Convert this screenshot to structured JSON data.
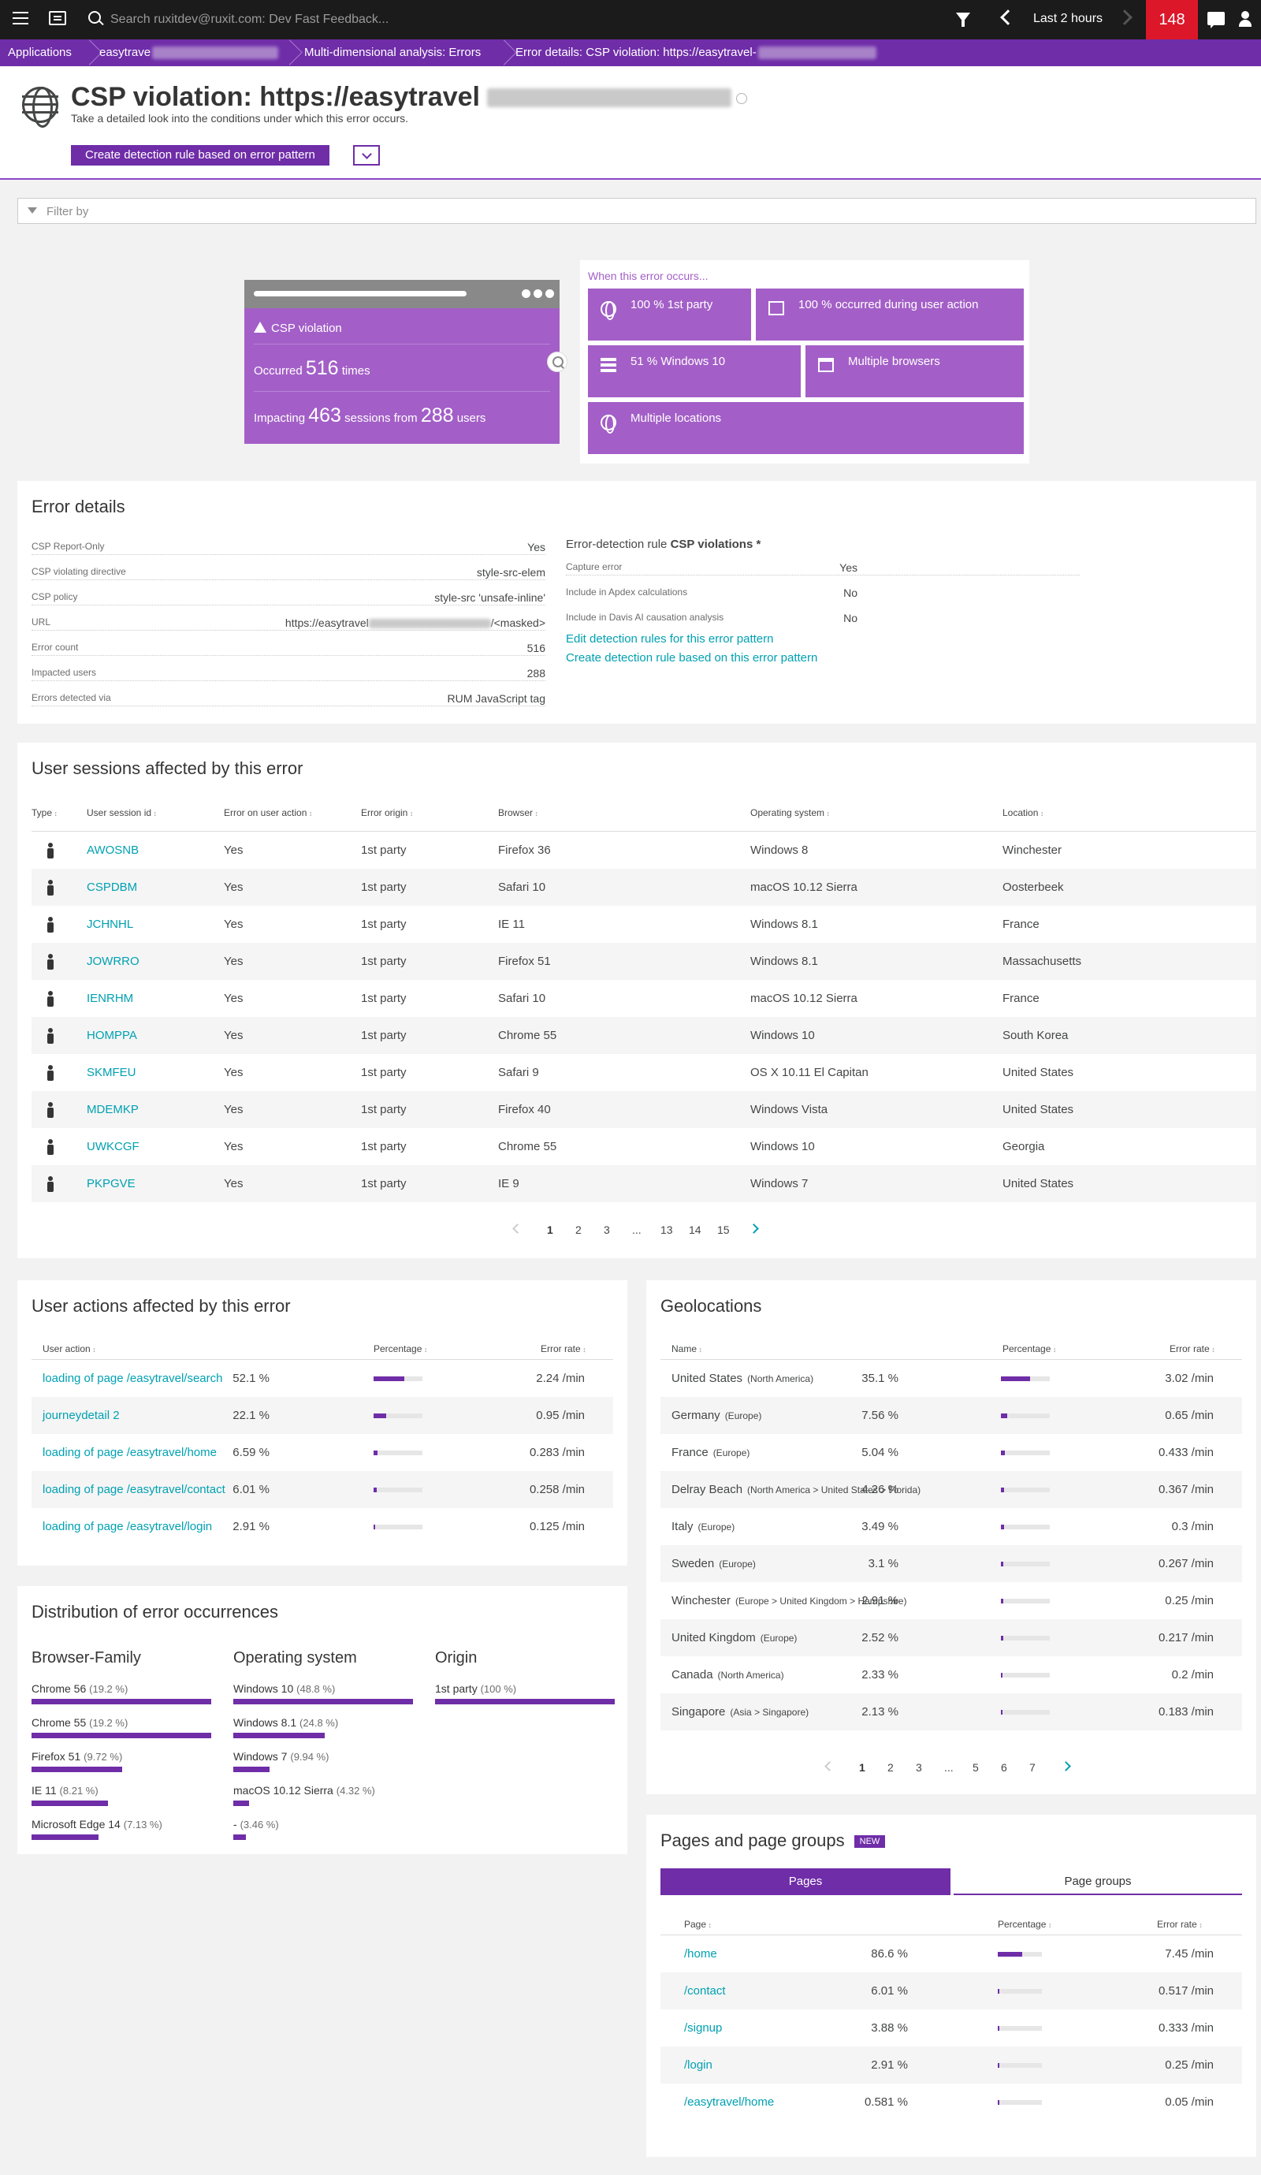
{
  "topbar": {
    "search_placeholder": "Search ruxitdev@ruxit.com: Dev Fast Feedback...",
    "timeframe": "Last 2 hours",
    "alert_count": "148"
  },
  "breadcrumb": {
    "items": [
      "Applications",
      "easytrave",
      "Multi-dimensional analysis: Errors",
      "Error details: CSP violation: https://easytravel-"
    ]
  },
  "header": {
    "title": "CSP violation: https://easytravel",
    "subtitle": "Take a detailed look into the conditions under which this error occurs.",
    "create_rule_button": "Create detection rule based on error pattern"
  },
  "filter": {
    "placeholder": "Filter by"
  },
  "summary": {
    "error_name": "CSP violation",
    "occurred_prefix": "Occurred",
    "occurred_count": "516",
    "occurred_suffix": "times",
    "impacting_prefix": "Impacting",
    "sessions_count": "463",
    "sessions_mid": "sessions from",
    "users_count": "288",
    "users_suffix": "users",
    "when_label": "When this error occurs...",
    "tiles": [
      {
        "icon": "globe-icon",
        "text": "100 % 1st party"
      },
      {
        "icon": "user-action-icon",
        "text": "100 % occurred during user action"
      },
      {
        "icon": "windows-icon",
        "text": "51 % Windows 10"
      },
      {
        "icon": "browsers-icon",
        "text": "Multiple browsers"
      },
      {
        "icon": "location-icon",
        "text": "Multiple locations"
      }
    ]
  },
  "error_details": {
    "title": "Error details",
    "left": [
      {
        "key": "CSP Report-Only",
        "value": "Yes"
      },
      {
        "key": "CSP violating directive",
        "value": "style-src-elem"
      },
      {
        "key": "CSP policy",
        "value": "style-src 'unsafe-inline'"
      },
      {
        "key": "URL",
        "value_prefix": "https://easytravel",
        "value_suffix": "/<masked>"
      },
      {
        "key": "Error count",
        "value": "516"
      },
      {
        "key": "Impacted users",
        "value": "288"
      },
      {
        "key": "Errors detected via",
        "value": "RUM JavaScript tag"
      }
    ],
    "rule_label": "Error-detection rule",
    "rule_name": "CSP violations *",
    "right": [
      {
        "key": "Capture error",
        "value": "Yes"
      },
      {
        "key": "Include in Apdex calculations",
        "value": "No"
      },
      {
        "key": "Include in Davis AI causation analysis",
        "value": "No"
      }
    ],
    "link_edit": "Edit detection rules for this error pattern",
    "link_create": "Create detection rule based on this error pattern"
  },
  "sessions": {
    "title": "User sessions affected by this error",
    "columns": [
      "Type",
      "User session id",
      "Error on user action",
      "Error origin",
      "Browser",
      "Operating system",
      "Location"
    ],
    "rows": [
      [
        "AWOSNB",
        "Yes",
        "1st party",
        "Firefox 36",
        "Windows 8",
        "Winchester"
      ],
      [
        "CSPDBM",
        "Yes",
        "1st party",
        "Safari 10",
        "macOS 10.12 Sierra",
        "Oosterbeek"
      ],
      [
        "JCHNHL",
        "Yes",
        "1st party",
        "IE 11",
        "Windows 8.1",
        "France"
      ],
      [
        "JOWRRO",
        "Yes",
        "1st party",
        "Firefox 51",
        "Windows 8.1",
        "Massachusetts"
      ],
      [
        "IENRHM",
        "Yes",
        "1st party",
        "Safari 10",
        "macOS 10.12 Sierra",
        "France"
      ],
      [
        "HOMPPA",
        "Yes",
        "1st party",
        "Chrome 55",
        "Windows 10",
        "South Korea"
      ],
      [
        "SKMFEU",
        "Yes",
        "1st party",
        "Safari 9",
        "OS X 10.11 El Capitan",
        "United States"
      ],
      [
        "MDEMKP",
        "Yes",
        "1st party",
        "Firefox 40",
        "Windows Vista",
        "United States"
      ],
      [
        "UWKCGF",
        "Yes",
        "1st party",
        "Chrome 55",
        "Windows 10",
        "Georgia"
      ],
      [
        "PKPGVE",
        "Yes",
        "1st party",
        "IE 9",
        "Windows 7",
        "United States"
      ]
    ],
    "pages": [
      "1",
      "2",
      "3",
      "...",
      "13",
      "14",
      "15"
    ]
  },
  "actions": {
    "title": "User actions affected by this error",
    "columns": [
      "User action",
      "Percentage",
      "Error rate"
    ],
    "rows": [
      {
        "name": "loading of page /easytravel/search",
        "pct": "52.1 %",
        "frac": 0.521,
        "rate": "2.24 /min"
      },
      {
        "name": "journeydetail 2",
        "pct": "22.1 %",
        "frac": 0.221,
        "rate": "0.95 /min"
      },
      {
        "name": "loading of page /easytravel/home",
        "pct": "6.59 %",
        "frac": 0.0659,
        "rate": "0.283 /min"
      },
      {
        "name": "loading of page /easytravel/contact",
        "pct": "6.01 %",
        "frac": 0.0601,
        "rate": "0.258 /min"
      },
      {
        "name": "loading of page /easytravel/login",
        "pct": "2.91 %",
        "frac": 0.0291,
        "rate": "0.125 /min"
      }
    ]
  },
  "distribution": {
    "title": "Distribution of error occurrences",
    "columns": [
      {
        "heading": "Browser-Family",
        "items": [
          {
            "label": "Chrome 56",
            "pct": "(19.2 %)",
            "frac": 0.192
          },
          {
            "label": "Chrome 55",
            "pct": "(19.2 %)",
            "frac": 0.192
          },
          {
            "label": "Firefox 51",
            "pct": "(9.72 %)",
            "frac": 0.0972
          },
          {
            "label": "IE 11",
            "pct": "(8.21 %)",
            "frac": 0.0821
          },
          {
            "label": "Microsoft Edge 14",
            "pct": "(7.13 %)",
            "frac": 0.0713
          }
        ]
      },
      {
        "heading": "Operating system",
        "items": [
          {
            "label": "Windows 10",
            "pct": "(48.8 %)",
            "frac": 0.488
          },
          {
            "label": "Windows 8.1",
            "pct": "(24.8 %)",
            "frac": 0.248
          },
          {
            "label": "Windows 7",
            "pct": "(9.94 %)",
            "frac": 0.0994
          },
          {
            "label": "macOS 10.12 Sierra",
            "pct": "(4.32 %)",
            "frac": 0.0432
          },
          {
            "label": "-",
            "pct": "(3.46 %)",
            "frac": 0.0346
          }
        ]
      },
      {
        "heading": "Origin",
        "items": [
          {
            "label": "1st party",
            "pct": "(100 %)",
            "frac": 1.0
          }
        ]
      }
    ]
  },
  "geo": {
    "title": "Geolocations",
    "columns": [
      "Name",
      "Percentage",
      "Error rate"
    ],
    "rows": [
      {
        "name": "United States",
        "region": "(North America)",
        "pct": "35.1 %",
        "frac": 0.351,
        "rate": "3.02 /min"
      },
      {
        "name": "Germany",
        "region": "(Europe)",
        "pct": "7.56 %",
        "frac": 0.0756,
        "rate": "0.65 /min"
      },
      {
        "name": "France",
        "region": "(Europe)",
        "pct": "5.04 %",
        "frac": 0.0504,
        "rate": "0.433 /min"
      },
      {
        "name": "Delray Beach",
        "region": "(North America > United States > Florida)",
        "pct": "4.26 %",
        "frac": 0.0426,
        "rate": "0.367 /min"
      },
      {
        "name": "Italy",
        "region": "(Europe)",
        "pct": "3.49 %",
        "frac": 0.0349,
        "rate": "0.3 /min"
      },
      {
        "name": "Sweden",
        "region": "(Europe)",
        "pct": "3.1 %",
        "frac": 0.031,
        "rate": "0.267 /min"
      },
      {
        "name": "Winchester",
        "region": "(Europe > United Kingdom > Hampshire)",
        "pct": "2.91 %",
        "frac": 0.0291,
        "rate": "0.25 /min"
      },
      {
        "name": "United Kingdom",
        "region": "(Europe)",
        "pct": "2.52 %",
        "frac": 0.0252,
        "rate": "0.217 /min"
      },
      {
        "name": "Canada",
        "region": "(North America)",
        "pct": "2.33 %",
        "frac": 0.0233,
        "rate": "0.2 /min"
      },
      {
        "name": "Singapore",
        "region": "(Asia > Singapore)",
        "pct": "2.13 %",
        "frac": 0.0213,
        "rate": "0.183 /min"
      }
    ],
    "pages": [
      "1",
      "2",
      "3",
      "...",
      "5",
      "6",
      "7"
    ]
  },
  "pages_card": {
    "title": "Pages and page groups",
    "badge": "NEW",
    "tab_pages": "Pages",
    "tab_groups": "Page groups",
    "columns": [
      "Page",
      "Percentage",
      "Error rate"
    ],
    "rows": [
      {
        "name": "/home",
        "pct": "86.6 %",
        "frac": 0.866,
        "rate": "7.45 /min"
      },
      {
        "name": "/contact",
        "pct": "6.01 %",
        "frac": 0.0601,
        "rate": "0.517 /min"
      },
      {
        "name": "/signup",
        "pct": "3.88 %",
        "frac": 0.0388,
        "rate": "0.333 /min"
      },
      {
        "name": "/login",
        "pct": "2.91 %",
        "frac": 0.0291,
        "rate": "0.25 /min"
      },
      {
        "name": "/easytravel/home",
        "pct": "0.581 %",
        "frac": 0.00581,
        "rate": "0.05 /min"
      }
    ]
  },
  "colors": {
    "brand": "#6f2da8",
    "tile": "#a35fc7",
    "link": "#00a1b2",
    "alert": "#dc172a"
  }
}
